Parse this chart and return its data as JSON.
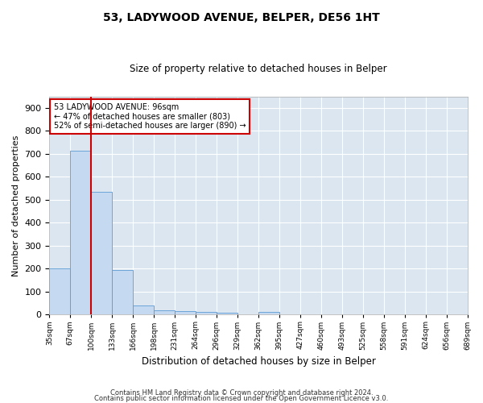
{
  "title1": "53, LADYWOOD AVENUE, BELPER, DE56 1HT",
  "title2": "Size of property relative to detached houses in Belper",
  "xlabel": "Distribution of detached houses by size in Belper",
  "ylabel": "Number of detached properties",
  "footer1": "Contains HM Land Registry data © Crown copyright and database right 2024.",
  "footer2": "Contains public sector information licensed under the Open Government Licence v3.0.",
  "annotation_line1": "53 LADYWOOD AVENUE: 96sqm",
  "annotation_line2": "← 47% of detached houses are smaller (803)",
  "annotation_line3": "52% of semi-detached houses are larger (890) →",
  "bar_values": [
    200,
    715,
    535,
    193,
    40,
    18,
    14,
    10,
    8,
    0,
    10,
    0,
    0,
    0,
    0,
    0,
    0,
    0,
    0,
    0
  ],
  "tick_labels": [
    "35sqm",
    "67sqm",
    "100sqm",
    "133sqm",
    "166sqm",
    "198sqm",
    "231sqm",
    "264sqm",
    "296sqm",
    "329sqm",
    "362sqm",
    "395sqm",
    "427sqm",
    "460sqm",
    "493sqm",
    "525sqm",
    "558sqm",
    "591sqm",
    "624sqm",
    "656sqm",
    "689sqm"
  ],
  "bar_color": "#c5d9f1",
  "bar_edge_color": "#5b9bd5",
  "vline_color": "#cc0000",
  "ylim": [
    0,
    950
  ],
  "yticks": [
    0,
    100,
    200,
    300,
    400,
    500,
    600,
    700,
    800,
    900
  ],
  "annotation_box_color": "white",
  "annotation_box_edge": "#cc0000",
  "background_color": "#dce6f1",
  "grid_color": "white"
}
